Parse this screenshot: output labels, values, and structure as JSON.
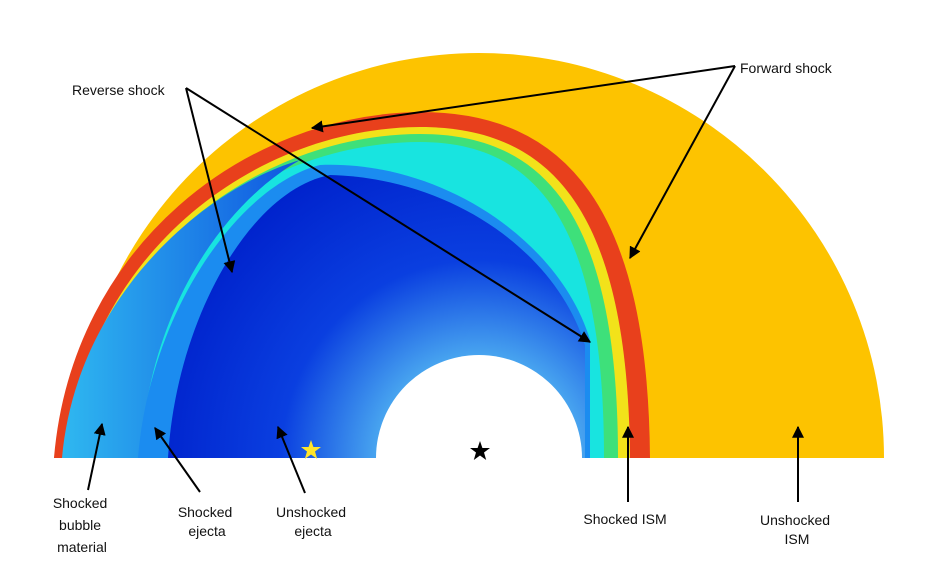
{
  "labels": {
    "reverse_shock": "Reverse shock",
    "forward_shock": "Forward shock",
    "shocked_bubble_material": [
      "Shocked",
      "bubble",
      "material"
    ],
    "shocked_ejecta": [
      "Shocked",
      "ejecta"
    ],
    "unshocked_ejecta": [
      "Unshocked",
      "ejecta"
    ],
    "shocked_ism": "Shocked ISM",
    "unshocked_ism": [
      "Unshocked",
      "ISM"
    ]
  }
}
